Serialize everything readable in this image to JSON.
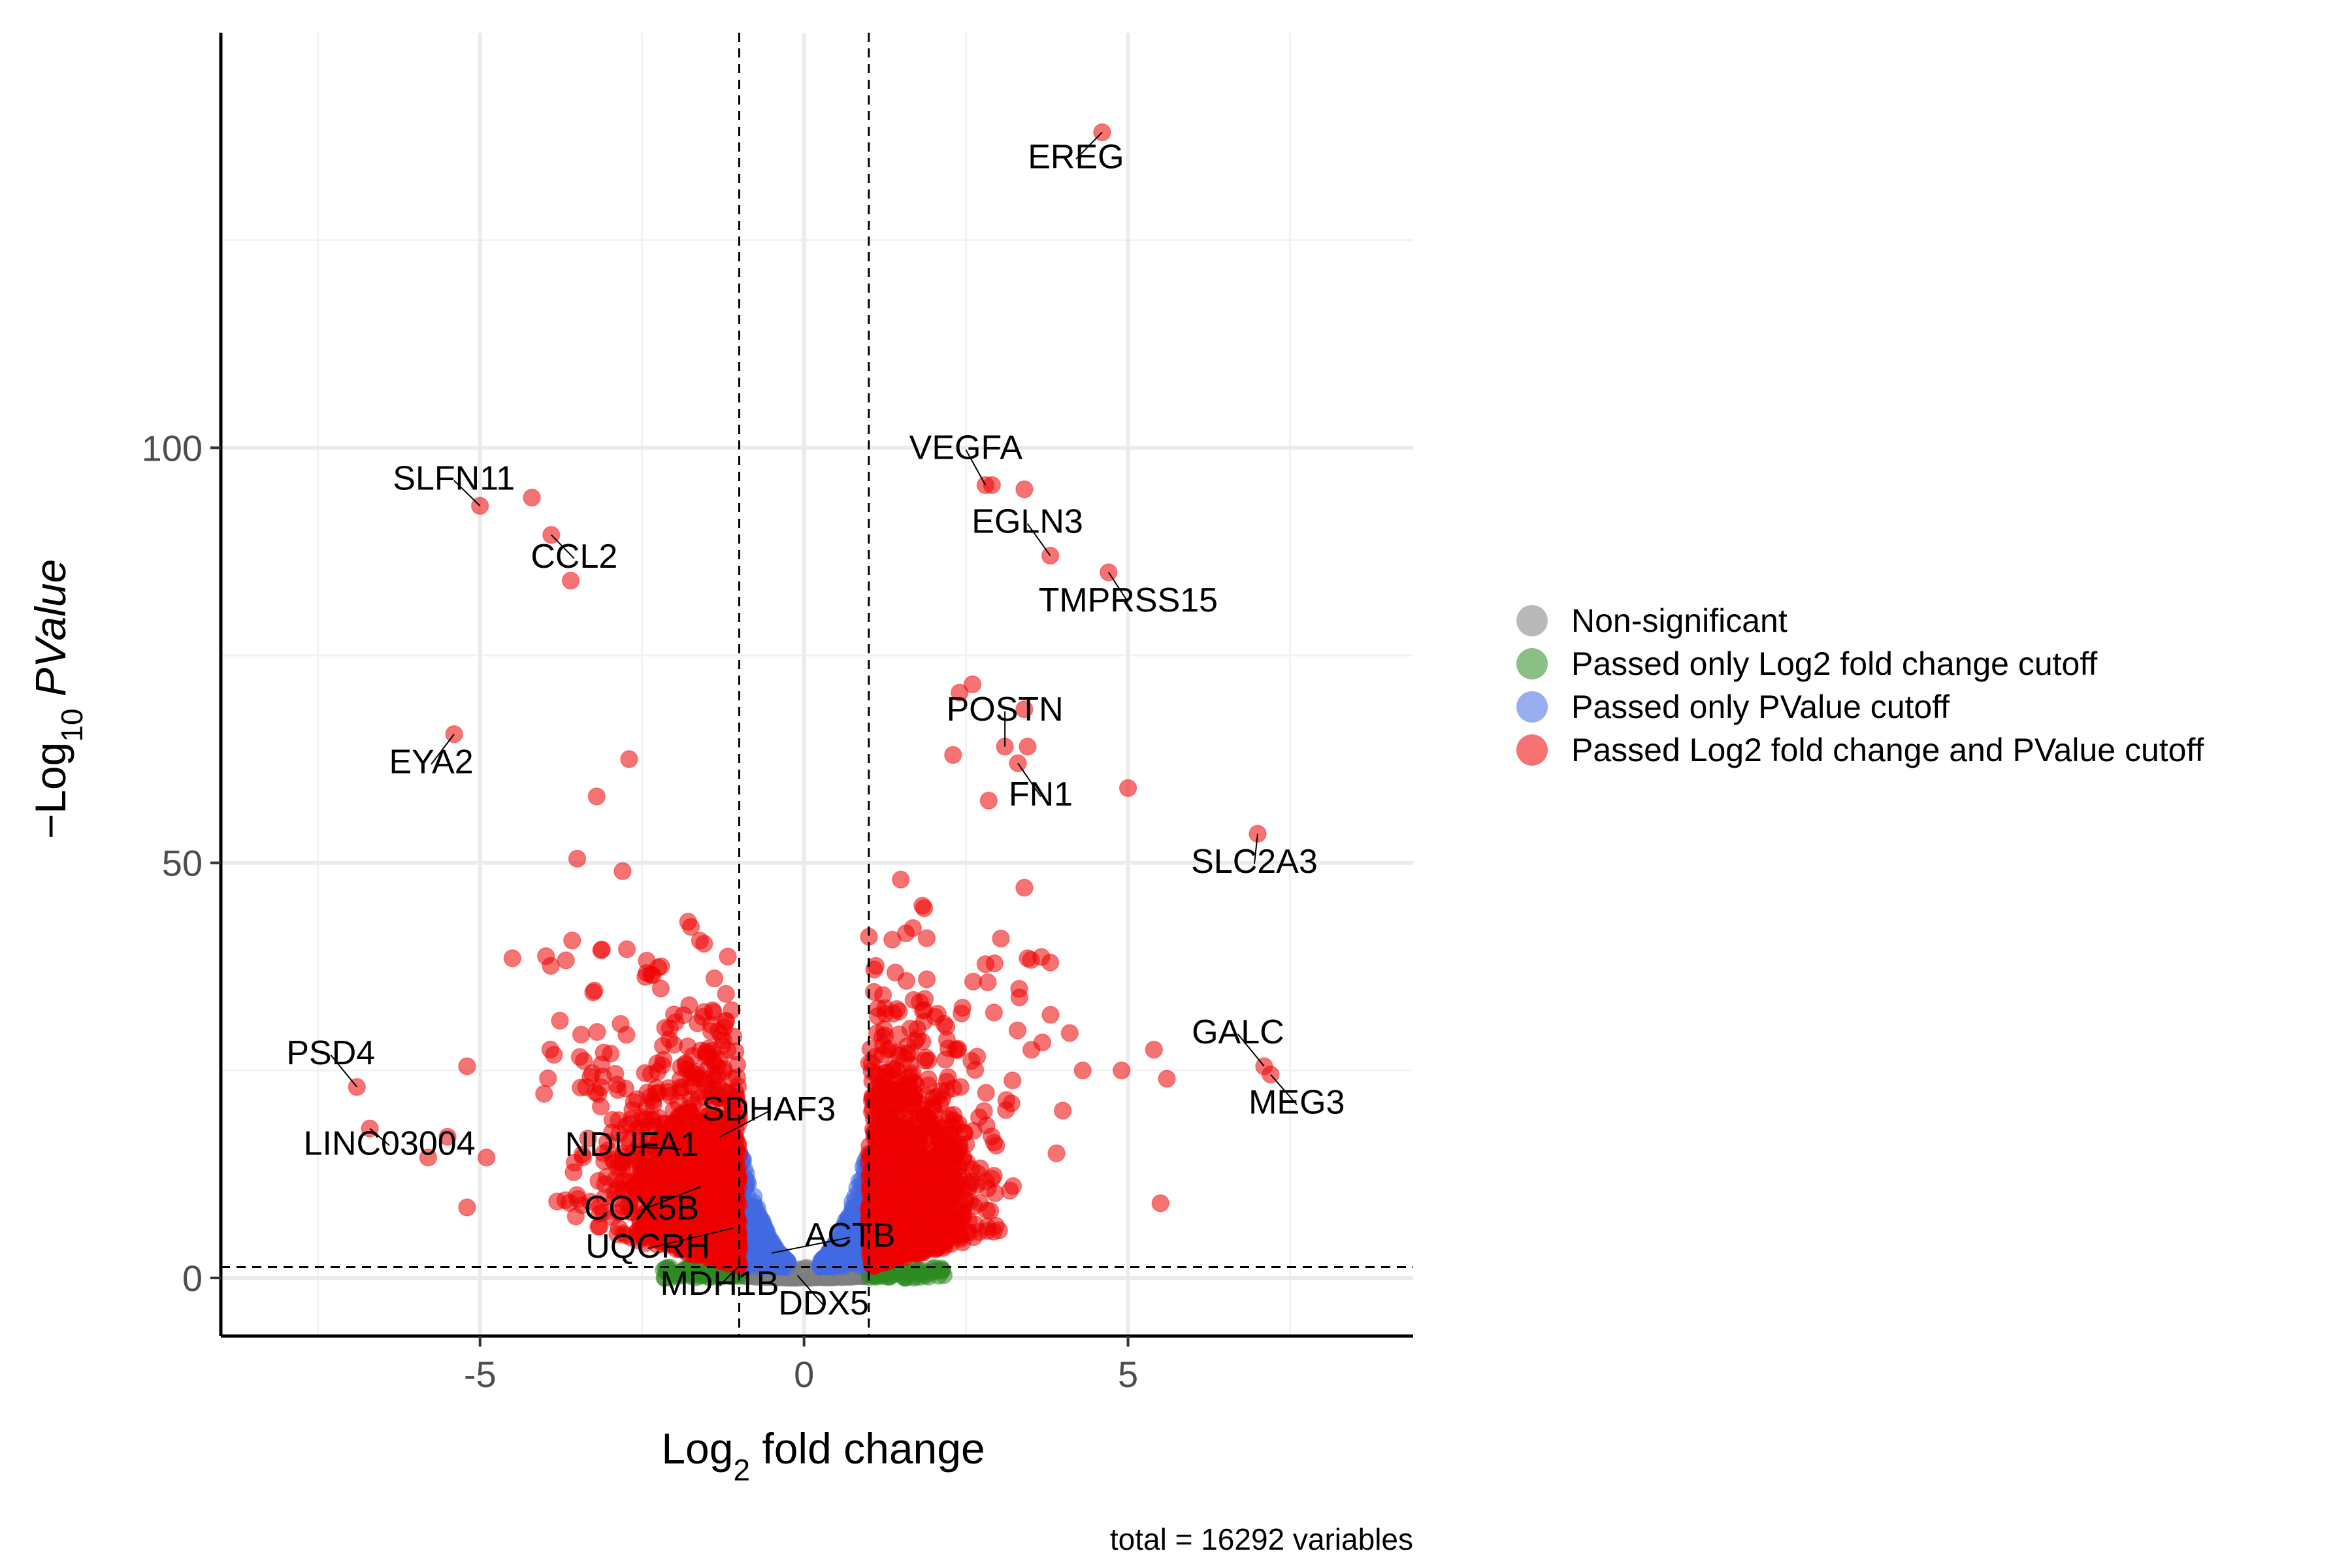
{
  "chart_data": {
    "type": "scatter",
    "subtype": "volcano",
    "xlabel": "Log2 fold change",
    "ylabel": "-Log10 PValue",
    "xlim": [
      -9,
      9.4
    ],
    "ylim": [
      -7,
      150
    ],
    "x_ticks": [
      -5,
      0,
      5
    ],
    "y_ticks": [
      0,
      50,
      100
    ],
    "grid": true,
    "fc_cutoff": 1,
    "p_cutoff_log10": 1.3,
    "caption": "total = 16292 variables",
    "legend_position": "right",
    "legend": [
      {
        "label": "Non-significant",
        "color": "#7f7f7f"
      },
      {
        "label": "Passed only Log2 fold change cutoff",
        "color": "#2e8b22"
      },
      {
        "label": "Passed only PValue cutoff",
        "color": "#4169e1"
      },
      {
        "label": "Passed Log2 fold change and PValue cutoff",
        "color": "#ee0000"
      }
    ],
    "labeled_genes": [
      {
        "name": "EREG",
        "x": 4.6,
        "y": 138
      },
      {
        "name": "VEGFA",
        "x": 2.8,
        "y": 95.5
      },
      {
        "name": "EGLN3",
        "x": 3.8,
        "y": 87
      },
      {
        "name": "TMPRSS15",
        "x": 4.7,
        "y": 85
      },
      {
        "name": "SLFN11",
        "x": -5.0,
        "y": 93
      },
      {
        "name": "CCL2",
        "x": -3.9,
        "y": 89.5
      },
      {
        "name": "EYA2",
        "x": -5.4,
        "y": 65.5
      },
      {
        "name": "POSTN",
        "x": 3.1,
        "y": 64
      },
      {
        "name": "FN1",
        "x": 3.3,
        "y": 62
      },
      {
        "name": "SLC2A3",
        "x": 7.0,
        "y": 53.5
      },
      {
        "name": "GALC",
        "x": 7.1,
        "y": 25.5
      },
      {
        "name": "MEG3",
        "x": 7.2,
        "y": 24.5
      },
      {
        "name": "PSD4",
        "x": -6.9,
        "y": 23
      },
      {
        "name": "LINC03004",
        "x": -6.7,
        "y": 18
      },
      {
        "name": "SDHAF3",
        "x": -1.3,
        "y": 17
      },
      {
        "name": "NDUFA1",
        "x": -1.9,
        "y": 15.5
      },
      {
        "name": "COX5B",
        "x": -1.6,
        "y": 11
      },
      {
        "name": "UQCRH",
        "x": -1.1,
        "y": 6
      },
      {
        "name": "ACTB",
        "x": -0.5,
        "y": 3
      },
      {
        "name": "MDH1B",
        "x": -1.0,
        "y": 1.5
      },
      {
        "name": "DDX5",
        "x": -0.1,
        "y": 0.3
      }
    ],
    "highlight_points": [
      {
        "x": -4.2,
        "y": 94
      },
      {
        "x": -3.6,
        "y": 84
      },
      {
        "x": 2.9,
        "y": 95.5
      },
      {
        "x": 3.4,
        "y": 95
      },
      {
        "x": 2.6,
        "y": 71.5
      },
      {
        "x": 2.4,
        "y": 70.5
      },
      {
        "x": 3.4,
        "y": 68.5
      },
      {
        "x": 2.3,
        "y": 63
      },
      {
        "x": 3.45,
        "y": 64
      },
      {
        "x": 2.85,
        "y": 57.5
      },
      {
        "x": 5.0,
        "y": 59
      },
      {
        "x": -2.7,
        "y": 62.5
      },
      {
        "x": -3.2,
        "y": 58
      },
      {
        "x": -3.5,
        "y": 50.5
      },
      {
        "x": -2.8,
        "y": 49
      },
      {
        "x": 3.4,
        "y": 47
      },
      {
        "x": 5.4,
        "y": 27.5
      },
      {
        "x": 5.6,
        "y": 24
      },
      {
        "x": 5.5,
        "y": 9
      },
      {
        "x": 4.9,
        "y": 25
      },
      {
        "x": 4.3,
        "y": 25
      },
      {
        "x": 4.1,
        "y": 29.5
      },
      {
        "x": -5.2,
        "y": 25.5
      },
      {
        "x": -5.5,
        "y": 17
      },
      {
        "x": -5.2,
        "y": 8.5
      },
      {
        "x": -4.5,
        "y": 38.5
      },
      {
        "x": 3.45,
        "y": 38.5
      },
      {
        "x": 3.8,
        "y": 38
      },
      {
        "x": -5.8,
        "y": 14.5
      },
      {
        "x": -4.9,
        "y": 14.5
      }
    ],
    "distribution": {
      "sig_up_x_range": [
        1,
        4
      ],
      "sig_down_x_range": [
        -4.5,
        -1
      ],
      "non_significant_x_range": [
        -1,
        1
      ],
      "note_points": 16292
    }
  }
}
